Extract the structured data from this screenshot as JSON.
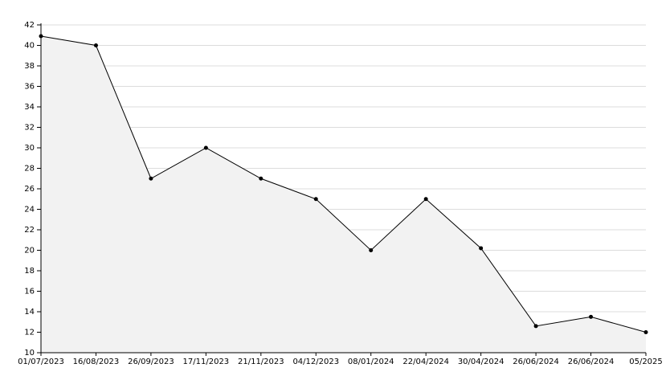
{
  "chart_data": {
    "type": "area",
    "categories": [
      "01/07/2023",
      "16/08/2023",
      "26/09/2023",
      "17/11/2023",
      "21/11/2023",
      "04/12/2023",
      "08/01/2024",
      "22/04/2024",
      "30/04/2024",
      "26/06/2024",
      "26/06/2024",
      "05/2025"
    ],
    "values": [
      40.9,
      40,
      27,
      30,
      27,
      25,
      20,
      25,
      20.2,
      12.6,
      13.5,
      12
    ],
    "color": "#000000",
    "fill": "#f2f2f2",
    "ylim": [
      10,
      42
    ],
    "yticks": [
      10,
      12,
      14,
      16,
      18,
      20,
      22,
      24,
      26,
      28,
      30,
      32,
      34,
      36,
      38,
      40,
      42
    ],
    "grid": true
  }
}
